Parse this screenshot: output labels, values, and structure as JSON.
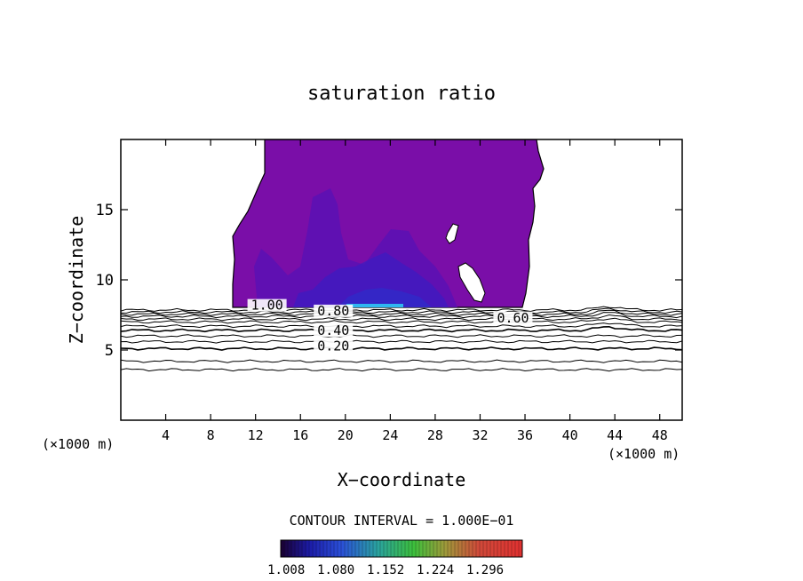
{
  "chart_data": {
    "type": "contour",
    "title": "saturation ratio",
    "xlabel": "X−coordinate",
    "ylabel": "Z−coordinate",
    "x_unit_left": "(×1000 m)",
    "x_unit_right": "(×1000 m)",
    "xlim": [
      0,
      50
    ],
    "ylim": [
      0,
      20
    ],
    "x_ticks": [
      4,
      8,
      12,
      16,
      20,
      24,
      28,
      32,
      36,
      40,
      44,
      48
    ],
    "y_ticks": [
      5,
      10,
      15
    ],
    "contour_labels": [
      {
        "text": "1.00",
        "x": 11.6,
        "y": 8.0
      },
      {
        "text": "0.80",
        "x": 17.5,
        "y": 7.6
      },
      {
        "text": "0.60",
        "x": 33.5,
        "y": 7.1
      },
      {
        "text": "0.40",
        "x": 17.5,
        "y": 6.2
      },
      {
        "text": "0.20",
        "x": 17.5,
        "y": 5.1
      }
    ],
    "contour_interval_text": "CONTOUR INTERVAL = 1.000E−01",
    "colorbar": {
      "labels": [
        "1.008",
        "1.080",
        "1.152",
        "1.224",
        "1.296"
      ],
      "range": [
        1.0,
        1.35
      ]
    },
    "colors": {
      "supersat_fill": "#7a0ea8",
      "core_fill": "#5a10b4",
      "deep_core": "#3a1cc2",
      "max_streak": "#2fb6f0"
    }
  }
}
